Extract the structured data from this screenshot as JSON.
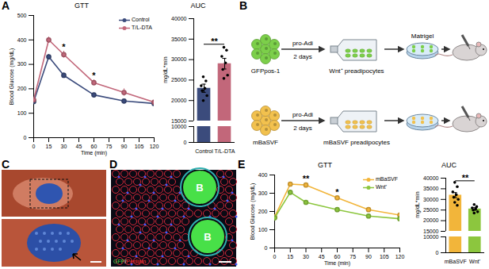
{
  "panel_labels": [
    "A",
    "B",
    "C",
    "D",
    "E"
  ],
  "chart_data": [
    {
      "type": "line",
      "title": "GTT",
      "x_label": "Time (min)",
      "y_label": "Blood Glucose (mg/dL)",
      "x": [
        0,
        15,
        30,
        60,
        90,
        120
      ],
      "xlim": [
        0,
        120
      ],
      "xticks": [
        0,
        15,
        30,
        45,
        60,
        75,
        90,
        105,
        120
      ],
      "ylim": [
        0,
        500
      ],
      "yticks": [
        0,
        100,
        200,
        300,
        400,
        500
      ],
      "legend": "top-right",
      "marker": "circle",
      "series": [
        {
          "name": "Control",
          "color": "#3b4b7c",
          "values": [
            148,
            331,
            255,
            175,
            150,
            140
          ],
          "errors": [
            8,
            10,
            10,
            8,
            6,
            6
          ]
        },
        {
          "name": "T/L-DTA",
          "color": "#c2677a",
          "values": [
            155,
            400,
            340,
            225,
            185,
            145
          ],
          "errors": [
            8,
            12,
            14,
            12,
            15,
            8
          ]
        }
      ],
      "annotations": [
        {
          "x": 30,
          "text": "*"
        },
        {
          "x": 60,
          "text": "*"
        }
      ]
    },
    {
      "type": "bar",
      "title": "AUC",
      "y_label": "mg/dL*min",
      "categories": [
        "Control",
        "T/L-DTA"
      ],
      "values": [
        23000,
        29000
      ],
      "errors": [
        1000,
        1300
      ],
      "colors": [
        "#3b4b7c",
        "#c2677a"
      ],
      "points": [
        [
          25800,
          24800,
          23600,
          23000,
          22400,
          21200,
          20000
        ],
        [
          33000,
          32300,
          30800,
          29200,
          27600,
          26200,
          25400
        ]
      ],
      "ylim": [
        0,
        40000
      ],
      "yticks": [
        0,
        10000,
        15000,
        20000,
        25000,
        30000,
        35000,
        40000
      ],
      "axis_break": [
        10000,
        15000
      ],
      "significance": {
        "text": "**",
        "between": [
          "Control",
          "T/L-DTA"
        ]
      }
    },
    {
      "type": "line",
      "title": "GTT",
      "x_label": "Time (min)",
      "y_label": "Blood Glucose (mg/dL)",
      "x": [
        0,
        15,
        30,
        60,
        90,
        120
      ],
      "xlim": [
        0,
        120
      ],
      "xticks": [
        0,
        15,
        30,
        45,
        60,
        75,
        90,
        105,
        120
      ],
      "ylim": [
        0,
        400
      ],
      "yticks": [
        0,
        100,
        200,
        300,
        400
      ],
      "legend": "top-right",
      "marker": "circle",
      "series": [
        {
          "name": "mBaSVF",
          "color": "#f2b53a",
          "values": [
            170,
            350,
            345,
            275,
            210,
            180
          ],
          "errors": [
            8,
            10,
            12,
            12,
            8,
            8
          ]
        },
        {
          "name": "Wnt⁺",
          "color": "#8cc63e",
          "values": [
            165,
            305,
            250,
            210,
            175,
            160
          ],
          "errors": [
            8,
            10,
            10,
            8,
            6,
            6
          ]
        }
      ],
      "annotations": [
        {
          "x": 30,
          "text": "**"
        },
        {
          "x": 60,
          "text": "*"
        }
      ]
    },
    {
      "type": "bar",
      "title": "AUC",
      "y_label": "mg/dL*min",
      "categories": [
        "mBaSVF",
        "Wnt⁺"
      ],
      "values": [
        32000,
        25500
      ],
      "errors": [
        1200,
        600
      ],
      "colors": [
        "#f2b53a",
        "#8cc63e"
      ],
      "points": [
        [
          38000,
          36000,
          33500,
          32200,
          31000,
          30000,
          28600,
          27200
        ],
        [
          27600,
          26600,
          26000,
          25500,
          25000,
          24200,
          23600
        ]
      ],
      "ylim": [
        0,
        40000
      ],
      "yticks": [
        0,
        10000,
        15000,
        20000,
        25000,
        30000,
        35000,
        40000
      ],
      "axis_break": [
        10000,
        15000
      ],
      "significance": {
        "text": "**",
        "between": [
          "mBaSVF",
          "Wnt⁺"
        ]
      }
    }
  ],
  "diagram": {
    "matrigel": "Matrigel",
    "rows": [
      {
        "source": "GFPpos-1",
        "step": "pro-Adi",
        "duration": "2 days",
        "product": "Wnt⁺ preadipocytes",
        "color": "#7ccf4a"
      },
      {
        "source": "mBaSVF",
        "step": "pro-Adi",
        "duration": "2 days",
        "product": "mBaSVF preadipocytes",
        "color": "#f2c14e"
      }
    ]
  },
  "image_D": {
    "labels": [
      "B",
      "B"
    ],
    "caption": [
      {
        "text": "GFP",
        "color": "#4cd34c"
      },
      {
        "text": "/",
        "color": "#ffffff"
      },
      {
        "text": "Perilipin",
        "color": "#ff3030"
      }
    ]
  }
}
